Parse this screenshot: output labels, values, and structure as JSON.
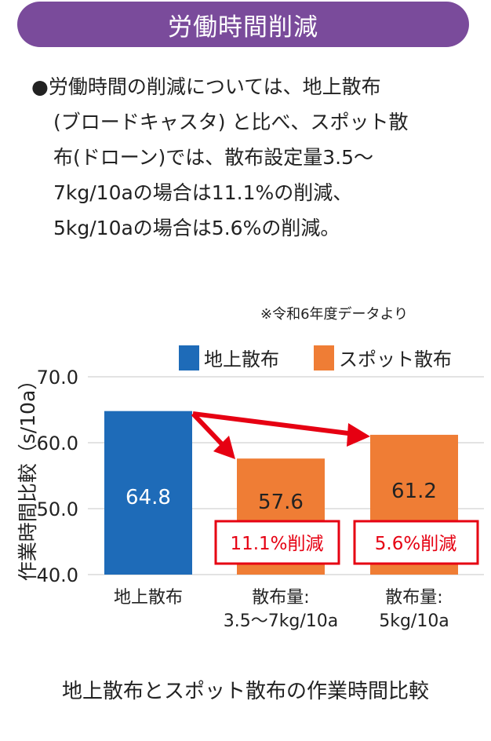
{
  "header": {
    "title": "労働時間削減"
  },
  "paragraph": {
    "lines": [
      "●労働時間の削減については、地上散布",
      "(ブロードキャスタ) と比べ、スポット散",
      "布(ドローン)では、散布設定量3.5～",
      "7kg/10aの場合は11.1%の削減、",
      "5kg/10aの場合は5.6%の削減。"
    ]
  },
  "note": "※令和6年度データより",
  "caption": "地上散布とスポット散布の作業時間比較",
  "chart_data": {
    "type": "bar",
    "ylabel": "作業時間比較（s/10a）",
    "ylim": [
      40,
      70
    ],
    "yticks": [
      "40.0",
      "50.0",
      "60.0",
      "70.0"
    ],
    "categories": [
      [
        "地上散布"
      ],
      [
        "散布量:",
        "3.5～7kg/10a"
      ],
      [
        "散布量:",
        "5kg/10a"
      ]
    ],
    "values": [
      64.8,
      57.6,
      61.2
    ],
    "value_labels": [
      "64.8",
      "57.6",
      "61.2"
    ],
    "series_of_bar": [
      0,
      1,
      1
    ],
    "legend": [
      {
        "name": "地上散布",
        "color": "#1e6bb8"
      },
      {
        "name": "スポット散布",
        "color": "#ef7d35"
      }
    ],
    "annotations": [
      {
        "text": "11.1%削減",
        "bar": 1
      },
      {
        "text": "5.6%削減",
        "bar": 2
      }
    ],
    "grid": true,
    "accent": "#e60012"
  }
}
